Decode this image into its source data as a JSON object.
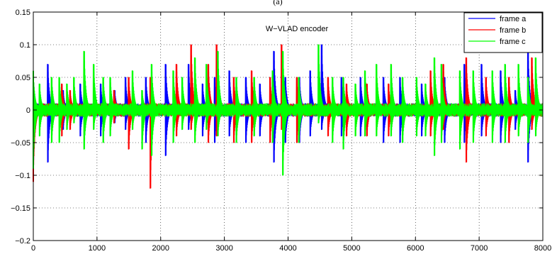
{
  "panel_label": "(a)",
  "chart_data": {
    "type": "line",
    "title": "",
    "xlabel": "",
    "ylabel": "",
    "xlim": [
      0,
      8000
    ],
    "ylim": [
      -0.2,
      0.15
    ],
    "xticks": [
      0,
      1000,
      2000,
      3000,
      4000,
      5000,
      6000,
      7000,
      8000
    ],
    "xtick_labels": [
      "0",
      "1000",
      "2000",
      "3000",
      "4000",
      "5000",
      "6000",
      "7000",
      "8000"
    ],
    "yticks": [
      -0.2,
      -0.15,
      -0.1,
      -0.05,
      0,
      0.05,
      0.1,
      0.15
    ],
    "ytick_labels": [
      "−0.2",
      "−0.15",
      "−0.1",
      "−0.05",
      "0",
      "0.05",
      "0.1",
      "0.15"
    ],
    "grid": true,
    "legend_position": "top-right",
    "annotation": "W−VLAD encoder",
    "series": [
      {
        "name": "frame a",
        "color": "#0000ff",
        "spike_peaks": [
          [
            0,
            0.05,
            -0.1
          ],
          [
            230,
            0.07,
            -0.08
          ],
          [
            470,
            0.03,
            -0.03
          ],
          [
            740,
            0.04,
            -0.04
          ],
          [
            1060,
            0.04,
            -0.04
          ],
          [
            1280,
            0.03,
            -0.02
          ],
          [
            1450,
            0.05,
            -0.03
          ],
          [
            1770,
            0.05,
            -0.05
          ],
          [
            2080,
            0.07,
            -0.07
          ],
          [
            2440,
            0.07,
            -0.03
          ],
          [
            2660,
            0.04,
            -0.04
          ],
          [
            2850,
            0.05,
            -0.05
          ],
          [
            3080,
            0.06,
            -0.04
          ],
          [
            3340,
            0.05,
            -0.05
          ],
          [
            3560,
            0.04,
            -0.04
          ],
          [
            3780,
            0.09,
            -0.08
          ],
          [
            3960,
            0.05,
            -0.05
          ],
          [
            4180,
            0.05,
            -0.05
          ],
          [
            4350,
            0.06,
            -0.04
          ],
          [
            4530,
            0.1,
            -0.03
          ],
          [
            4840,
            0.05,
            -0.04
          ],
          [
            5140,
            0.05,
            -0.04
          ],
          [
            5500,
            0.05,
            -0.05
          ],
          [
            5760,
            0.05,
            -0.05
          ],
          [
            6100,
            0.04,
            -0.04
          ],
          [
            6460,
            0.05,
            -0.05
          ],
          [
            6770,
            0.07,
            -0.05
          ],
          [
            7040,
            0.07,
            -0.04
          ],
          [
            7340,
            0.06,
            -0.05
          ],
          [
            7570,
            0.03,
            -0.03
          ],
          [
            7770,
            0.09,
            -0.08
          ]
        ]
      },
      {
        "name": "frame b",
        "color": "#ff0000",
        "spike_peaks": [
          [
            0,
            0.04,
            -0.11
          ],
          [
            450,
            0.04,
            -0.04
          ],
          [
            580,
            0.03,
            -0.03
          ],
          [
            1270,
            0.03,
            -0.02
          ],
          [
            1500,
            0.05,
            -0.06
          ],
          [
            1840,
            0.05,
            -0.12
          ],
          [
            2250,
            0.07,
            -0.04
          ],
          [
            2480,
            0.1,
            -0.03
          ],
          [
            2750,
            0.07,
            -0.05
          ],
          [
            2880,
            0.1,
            -0.04
          ],
          [
            3150,
            0.05,
            -0.05
          ],
          [
            3430,
            0.06,
            -0.05
          ],
          [
            3720,
            0.05,
            -0.05
          ],
          [
            3900,
            0.1,
            -0.03
          ],
          [
            4140,
            0.05,
            -0.05
          ],
          [
            4630,
            0.05,
            -0.04
          ],
          [
            4920,
            0.04,
            -0.04
          ],
          [
            5240,
            0.04,
            -0.04
          ],
          [
            5580,
            0.04,
            -0.04
          ],
          [
            6240,
            0.06,
            -0.04
          ],
          [
            6440,
            0.07,
            -0.03
          ],
          [
            6800,
            0.08,
            -0.08
          ],
          [
            7110,
            0.05,
            -0.04
          ],
          [
            7470,
            0.05,
            -0.05
          ],
          [
            7830,
            0.08,
            -0.03
          ]
        ]
      },
      {
        "name": "frame c",
        "color": "#00ff00",
        "spike_peaks": [
          [
            0,
            0.06,
            -0.09
          ],
          [
            100,
            0.04,
            -0.04
          ],
          [
            290,
            0.05,
            -0.05
          ],
          [
            410,
            0.05,
            -0.05
          ],
          [
            530,
            0.04,
            -0.03
          ],
          [
            640,
            0.05,
            -0.02
          ],
          [
            800,
            0.09,
            -0.06
          ],
          [
            950,
            0.07,
            -0.03
          ],
          [
            1100,
            0.05,
            -0.05
          ],
          [
            1210,
            0.05,
            -0.04
          ],
          [
            1560,
            0.06,
            -0.03
          ],
          [
            1710,
            0.03,
            -0.06
          ],
          [
            1860,
            0.07,
            -0.07
          ],
          [
            2200,
            0.06,
            -0.05
          ],
          [
            2340,
            0.05,
            -0.03
          ],
          [
            2540,
            0.08,
            -0.05
          ],
          [
            2720,
            0.07,
            -0.03
          ],
          [
            2900,
            0.09,
            -0.04
          ],
          [
            3190,
            0.05,
            -0.05
          ],
          [
            3470,
            0.05,
            -0.04
          ],
          [
            3760,
            0.06,
            -0.05
          ],
          [
            3920,
            0.09,
            -0.1
          ],
          [
            4170,
            0.05,
            -0.05
          ],
          [
            4480,
            0.1,
            -0.02
          ],
          [
            4700,
            0.05,
            -0.05
          ],
          [
            4870,
            0.05,
            -0.06
          ],
          [
            5060,
            0.04,
            -0.04
          ],
          [
            5210,
            0.06,
            -0.04
          ],
          [
            5390,
            0.07,
            -0.04
          ],
          [
            5620,
            0.07,
            -0.04
          ],
          [
            5800,
            0.05,
            -0.05
          ],
          [
            6020,
            0.05,
            -0.04
          ],
          [
            6160,
            0.04,
            -0.04
          ],
          [
            6300,
            0.08,
            -0.07
          ],
          [
            6410,
            0.07,
            -0.05
          ],
          [
            6700,
            0.06,
            -0.06
          ],
          [
            6910,
            0.06,
            -0.05
          ],
          [
            7210,
            0.06,
            -0.05
          ],
          [
            7410,
            0.07,
            -0.05
          ],
          [
            7620,
            0.07,
            -0.04
          ],
          [
            7770,
            0.05,
            -0.05
          ],
          [
            7890,
            0.08,
            -0.04
          ]
        ]
      }
    ]
  }
}
